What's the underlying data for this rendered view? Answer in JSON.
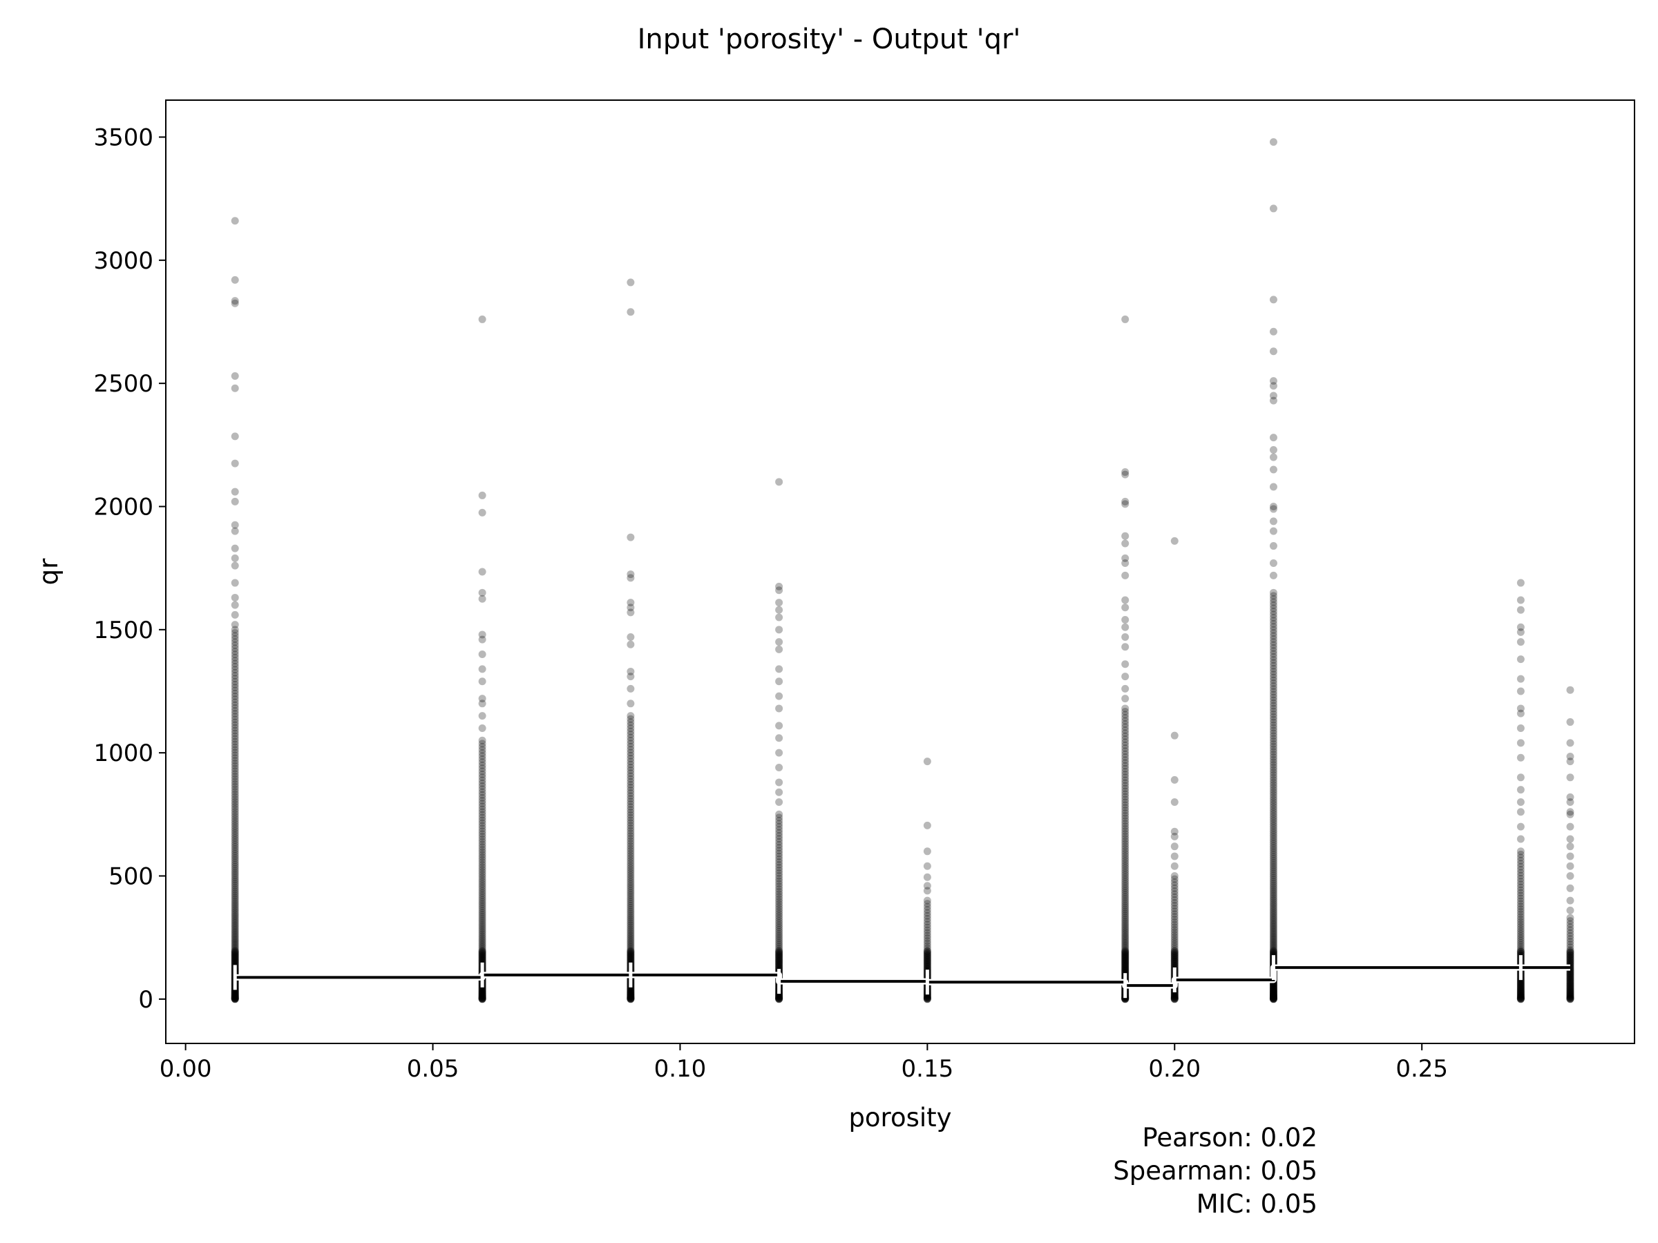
{
  "chart_data": {
    "type": "scatter",
    "title": "Input 'porosity' - Output 'qr'",
    "xlabel": "porosity",
    "ylabel": "qr",
    "xlim": [
      -0.004,
      0.293
    ],
    "ylim": [
      -180,
      3650
    ],
    "xticks": [
      0.0,
      0.05,
      0.1,
      0.15,
      0.2,
      0.25
    ],
    "xtick_labels": [
      "0.00",
      "0.05",
      "0.10",
      "0.15",
      "0.20",
      "0.25"
    ],
    "yticks": [
      0,
      500,
      1000,
      1500,
      2000,
      2500,
      3000,
      3500
    ],
    "ytick_labels": [
      "0",
      "500",
      "1000",
      "1500",
      "2000",
      "2500",
      "3000",
      "3500"
    ],
    "grid": false,
    "point_color": "#000000",
    "point_opacity": 0.28,
    "columns": [
      {
        "x": 0.01,
        "dense_max": 1500,
        "outliers": [
          3160,
          2920,
          2835,
          2825,
          2530,
          2480,
          2285,
          2175,
          2060,
          2020,
          1925,
          1900,
          1830,
          1790,
          1760,
          1690,
          1630,
          1600,
          1560,
          1520
        ]
      },
      {
        "x": 0.06,
        "dense_max": 1050,
        "outliers": [
          2760,
          2045,
          1975,
          1735,
          1650,
          1625,
          1480,
          1460,
          1400,
          1340,
          1290,
          1220,
          1200,
          1150,
          1100
        ]
      },
      {
        "x": 0.09,
        "dense_max": 1150,
        "outliers": [
          2910,
          2790,
          1875,
          1725,
          1710,
          1610,
          1590,
          1570,
          1470,
          1440,
          1330,
          1310,
          1260,
          1200
        ]
      },
      {
        "x": 0.12,
        "dense_max": 750,
        "outliers": [
          2100,
          1675,
          1660,
          1610,
          1580,
          1550,
          1500,
          1450,
          1420,
          1340,
          1290,
          1230,
          1180,
          1110,
          1060,
          1000,
          940,
          880,
          840,
          800
        ]
      },
      {
        "x": 0.15,
        "dense_max": 400,
        "outliers": [
          965,
          705,
          600,
          540,
          495,
          460,
          440
        ]
      },
      {
        "x": 0.19,
        "dense_max": 1180,
        "outliers": [
          2760,
          2140,
          2130,
          2020,
          2010,
          1880,
          1850,
          1790,
          1770,
          1720,
          1620,
          1590,
          1540,
          1510,
          1470,
          1430,
          1360,
          1310,
          1260,
          1220
        ]
      },
      {
        "x": 0.2,
        "dense_max": 500,
        "outliers": [
          1860,
          1070,
          890,
          800,
          680,
          660,
          620,
          580,
          540
        ]
      },
      {
        "x": 0.22,
        "dense_max": 1650,
        "outliers": [
          3480,
          3210,
          2840,
          2710,
          2630,
          2510,
          2490,
          2450,
          2430,
          2280,
          2230,
          2200,
          2150,
          2080,
          2000,
          1990,
          1940,
          1900,
          1840,
          1770,
          1720
        ]
      },
      {
        "x": 0.27,
        "dense_max": 600,
        "outliers": [
          1690,
          1620,
          1580,
          1510,
          1490,
          1450,
          1380,
          1300,
          1250,
          1180,
          1160,
          1100,
          1040,
          980,
          900,
          850,
          800,
          760,
          700,
          650
        ]
      },
      {
        "x": 0.28,
        "dense_max": 330,
        "outliers": [
          1255,
          1125,
          1040,
          985,
          965,
          900,
          820,
          800,
          760,
          750,
          700,
          650,
          620,
          580,
          540,
          500,
          450,
          400,
          360
        ]
      }
    ],
    "step_line": [
      {
        "x_start": 0.01,
        "x_end": 0.06,
        "y": 88
      },
      {
        "x_start": 0.06,
        "x_end": 0.09,
        "y": 98
      },
      {
        "x_start": 0.09,
        "x_end": 0.12,
        "y": 98
      },
      {
        "x_start": 0.12,
        "x_end": 0.15,
        "y": 72
      },
      {
        "x_start": 0.15,
        "x_end": 0.19,
        "y": 69
      },
      {
        "x_start": 0.19,
        "x_end": 0.2,
        "y": 55
      },
      {
        "x_start": 0.2,
        "x_end": 0.22,
        "y": 78
      },
      {
        "x_start": 0.22,
        "x_end": 0.27,
        "y": 128
      },
      {
        "x_start": 0.27,
        "x_end": 0.28,
        "y": 128
      }
    ]
  },
  "stats": {
    "pearson": "Pearson: 0.02",
    "spearman": "Spearman: 0.05",
    "mic": "MIC: 0.05"
  }
}
